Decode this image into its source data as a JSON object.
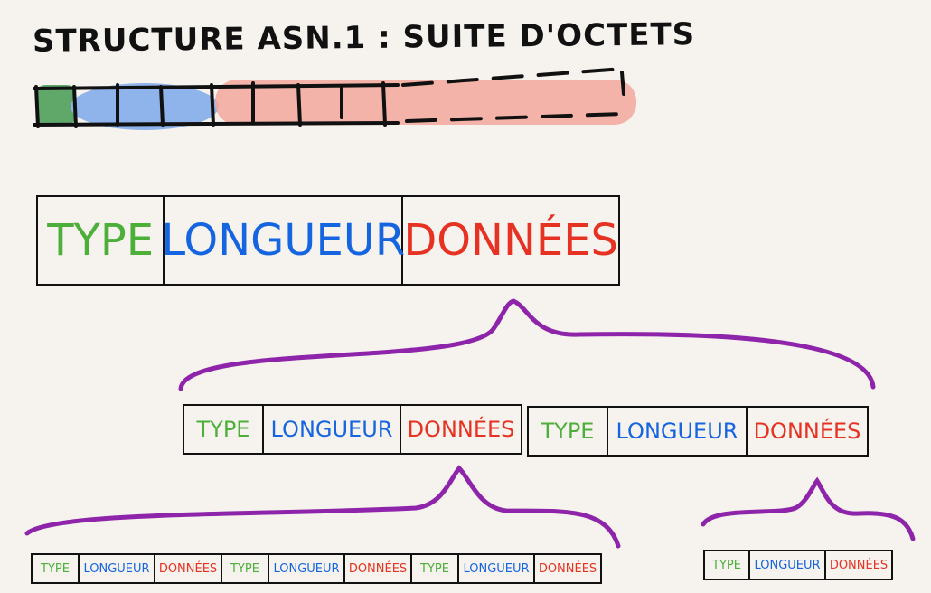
{
  "title": "STRUCTURE ASN.1 : SUITE D'OCTETS",
  "labels": {
    "type": "TYPE",
    "longueur": "LONGUEUR",
    "donnees": "DONNÉES"
  },
  "colors": {
    "type": "#4caf3a",
    "longueur": "#1565e0",
    "donnees": "#e53222",
    "brace": "#8e24aa",
    "byte_type_highlight": "#5fa86a",
    "byte_length_highlight": "#8fb4ec",
    "byte_data_highlight": "#f2a79c",
    "ink": "#111111",
    "background": "#f6f3ee"
  },
  "byte_strip": {
    "type_bytes": 1,
    "length_bytes": 3,
    "data_bytes_solid": 4,
    "data_bytes_dashed": 5
  }
}
